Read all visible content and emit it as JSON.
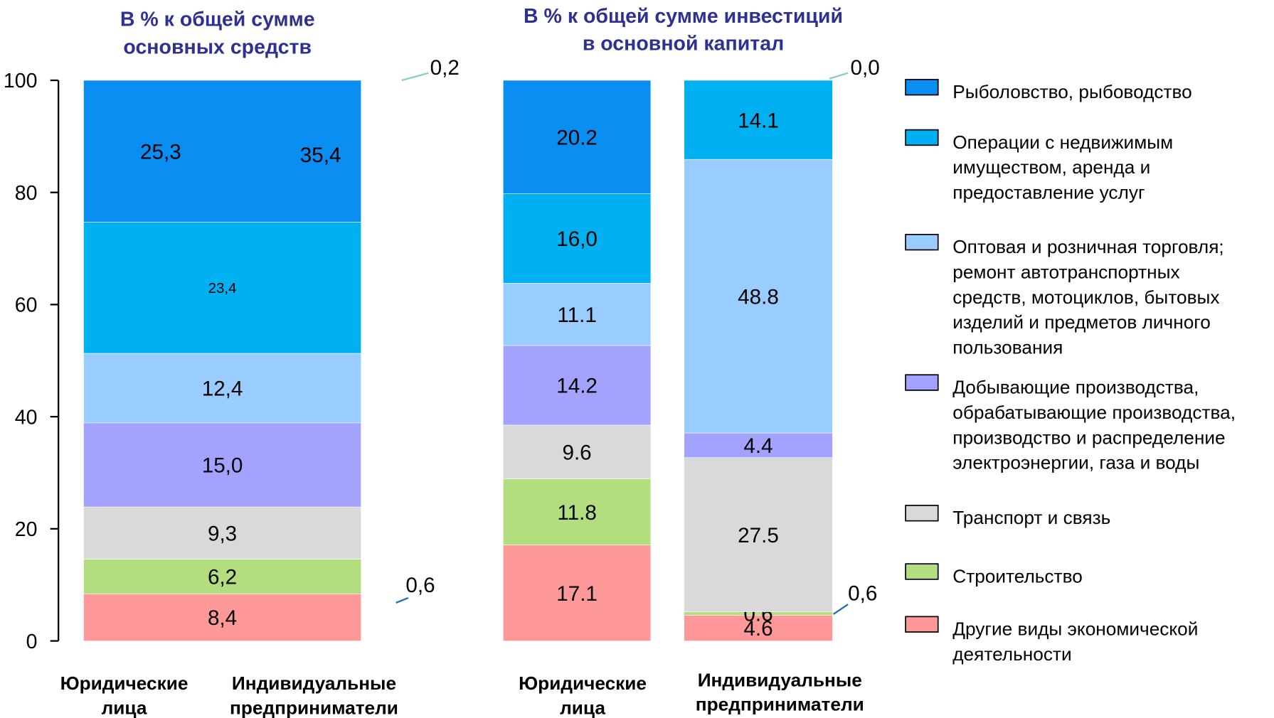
{
  "chart_data": [
    {
      "type": "stacked-bar",
      "title": "В % к общей сумме\nосновных средств",
      "categories": [
        "Юридические\nлица",
        "Индивидуальные\nпредприниматели"
      ],
      "ylim": [
        0,
        100
      ],
      "yticks": [
        0,
        20,
        40,
        60,
        80,
        100
      ],
      "series": [
        {
          "name": "Рыболовство, рыбоводство",
          "color": "#0b8ef2",
          "values": [
            25.3,
            null
          ],
          "value_labels": [
            "25,3",
            null
          ]
        },
        {
          "name": "Операции с недвижимым\nимуществом, аренда и\nпредоставление  услуг",
          "color": "#00b0f0",
          "values": [
            23.4,
            null
          ],
          "value_labels": [
            "23,4",
            null
          ]
        },
        {
          "name": "Оптовая и розничная торговля;\nремонт автотранспортных\nсредств, мотоциклов, бытовых\nизделий и предметов личного\nпользования",
          "color": "#99ccff",
          "values": [
            12.4,
            null
          ],
          "value_labels": [
            "12,4",
            null
          ]
        },
        {
          "name": "Добывающие производства,\nобрабатывающие производства,\nпроизводство и распределение\nэлектроэнергии, газа и воды",
          "color": "#a3a3ff",
          "values": [
            15.0,
            null
          ],
          "value_labels": [
            "15,0",
            null
          ]
        },
        {
          "name": "Транспорт и связь",
          "color": "#d9d9d9",
          "values": [
            9.3,
            null
          ],
          "value_labels": [
            "9,3",
            null
          ]
        },
        {
          "name": "Строительство",
          "color": "#b3de7f",
          "values": [
            6.2,
            null
          ],
          "value_labels": [
            "6,2",
            null
          ]
        },
        {
          "name": "Другие виды экономической\nдеятельности",
          "color": "#ff9999",
          "values": [
            8.4,
            null
          ],
          "value_labels": [
            "8,4",
            null
          ]
        }
      ],
      "annotations": [
        {
          "text": "35,4"
        },
        {
          "text": "0,2"
        },
        {
          "text": "0,6"
        }
      ]
    },
    {
      "type": "stacked-bar",
      "title": "В % к общей сумме инвестиций\nв основной капитал",
      "categories": [
        "Юридические\nлица",
        "Индивидуальные\nпредприниматели"
      ],
      "ylim": [
        0,
        100
      ],
      "series": [
        {
          "name": "Рыболовство, рыбоводство",
          "color": "#0b8ef2",
          "values": [
            20.2,
            0.0
          ],
          "value_labels": [
            "20.2",
            "0,0"
          ]
        },
        {
          "name": "Операции с недвижимым\nимуществом, аренда и\nпредоставление  услуг",
          "color": "#00b0f0",
          "values": [
            16.0,
            14.1
          ],
          "value_labels": [
            "16,0",
            "14.1"
          ]
        },
        {
          "name": "Оптовая и розничная торговля;\nремонт автотранспортных\nсредств, мотоциклов, бытовых\nизделий и предметов личного\nпользования",
          "color": "#99ccff",
          "values": [
            11.1,
            48.8
          ],
          "value_labels": [
            "11.1",
            "48.8"
          ]
        },
        {
          "name": "Добывающие производства,\nобрабатывающие производства,\nпроизводство и распределение\nэлектроэнергии, газа и воды",
          "color": "#a3a3ff",
          "values": [
            14.2,
            4.4
          ],
          "value_labels": [
            "14.2",
            "4.4"
          ]
        },
        {
          "name": "Транспорт и связь",
          "color": "#d9d9d9",
          "values": [
            9.6,
            27.5
          ],
          "value_labels": [
            "9.6",
            "27.5"
          ]
        },
        {
          "name": "Строительство",
          "color": "#b3de7f",
          "values": [
            11.8,
            0.6
          ],
          "value_labels": [
            "11.8",
            "0.6"
          ]
        },
        {
          "name": "Другие виды экономической\nдеятельности",
          "color": "#ff9999",
          "values": [
            17.1,
            4.6
          ],
          "value_labels": [
            "17.1",
            "4.6"
          ]
        }
      ],
      "annotations": [
        {
          "text": "0,6"
        }
      ]
    }
  ]
}
